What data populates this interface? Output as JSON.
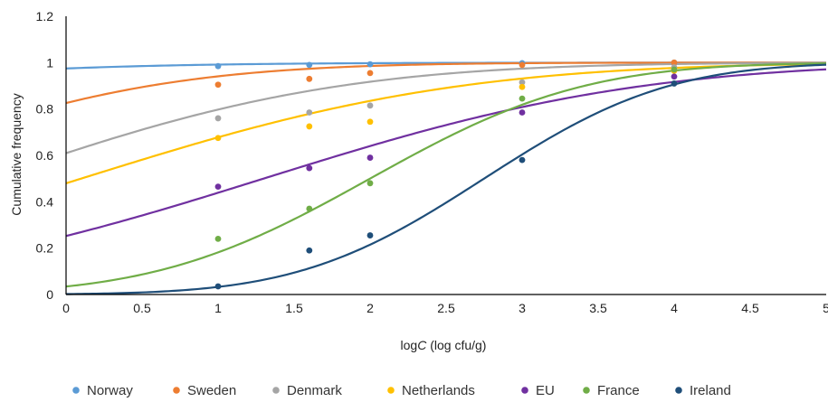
{
  "chart_data": {
    "type": "scatter",
    "xlabel_prefix": "log",
    "xlabel_italic": "C",
    "xlabel_suffix": " (log cfu/g)",
    "ylabel": "Cumulative frequency",
    "xlim": [
      0,
      5
    ],
    "ylim": [
      0,
      1.2
    ],
    "x_ticks": [
      "0",
      "0.5",
      "1",
      "1.5",
      "2",
      "2.5",
      "3",
      "3.5",
      "4",
      "4.5",
      "5"
    ],
    "y_ticks": [
      "0",
      "0.2",
      "0.4",
      "0.6",
      "0.8",
      "1",
      "1.2"
    ],
    "grid": false,
    "legend_position": "bottom",
    "series": [
      {
        "name": "Norway",
        "color": "#5B9BD5",
        "points": [
          [
            1,
            0.985
          ],
          [
            1.6,
            0.99
          ],
          [
            2,
            0.993
          ],
          [
            3,
            0.998
          ],
          [
            4,
            1.0
          ]
        ],
        "fit": {
          "mu": -4.5,
          "sigma": 2.3
        }
      },
      {
        "name": "Sweden",
        "color": "#ED7D31",
        "points": [
          [
            1,
            0.905
          ],
          [
            1.6,
            0.93
          ],
          [
            2,
            0.955
          ],
          [
            3,
            0.99
          ],
          [
            4,
            1.0
          ]
        ],
        "fit": {
          "mu": -1.5,
          "sigma": 1.6
        }
      },
      {
        "name": "Denmark",
        "color": "#A5A5A5",
        "points": [
          [
            1,
            0.76
          ],
          [
            1.6,
            0.785
          ],
          [
            2,
            0.815
          ],
          [
            3,
            0.915
          ],
          [
            4,
            0.98
          ]
        ],
        "fit": {
          "mu": -0.5,
          "sigma": 1.8
        }
      },
      {
        "name": "Netherlands",
        "color": "#FFC000",
        "points": [
          [
            1,
            0.675
          ],
          [
            1.6,
            0.725
          ],
          [
            2,
            0.745
          ],
          [
            3,
            0.895
          ],
          [
            4,
            0.965
          ]
        ],
        "fit": {
          "mu": 0.1,
          "sigma": 1.95
        }
      },
      {
        "name": "EU",
        "color": "#7030A0",
        "points": [
          [
            1,
            0.465
          ],
          [
            1.6,
            0.545
          ],
          [
            2,
            0.59
          ],
          [
            3,
            0.785
          ],
          [
            4,
            0.94
          ]
        ],
        "fit": {
          "mu": 1.3,
          "sigma": 1.95
        }
      },
      {
        "name": "France",
        "color": "#70AD47",
        "points": [
          [
            1,
            0.24
          ],
          [
            1.6,
            0.37
          ],
          [
            2,
            0.48
          ],
          [
            3,
            0.845
          ],
          [
            4,
            0.97
          ]
        ],
        "fit": {
          "mu": 2.0,
          "sigma": 1.1
        }
      },
      {
        "name": "Ireland",
        "color": "#1F4E79",
        "points": [
          [
            1,
            0.035
          ],
          [
            1.6,
            0.19
          ],
          [
            2,
            0.255
          ],
          [
            3,
            0.58
          ],
          [
            4,
            0.91
          ]
        ],
        "fit": {
          "mu": 2.75,
          "sigma": 0.95
        }
      }
    ]
  }
}
